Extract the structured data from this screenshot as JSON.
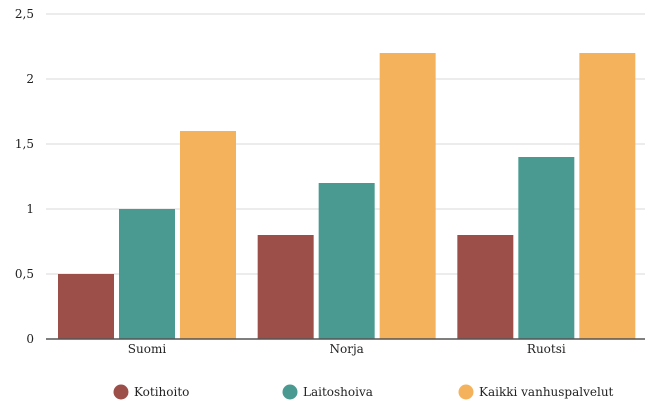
{
  "chart_data": {
    "type": "bar",
    "categories": [
      "Suomi",
      "Norja",
      "Ruotsi"
    ],
    "series": [
      {
        "name": "Kotihoito",
        "values": [
          0.5,
          0.8,
          0.8
        ],
        "color": "#9c4f48"
      },
      {
        "name": "Laitoshoiva",
        "values": [
          1.0,
          1.2,
          1.4
        ],
        "color": "#4a9a92"
      },
      {
        "name": "Kaikki vanhuspalvelut",
        "values": [
          1.6,
          2.2,
          2.2
        ],
        "color": "#f5b25c"
      }
    ],
    "ylim": [
      0,
      2.5
    ],
    "yticks": [
      0,
      0.5,
      1,
      1.5,
      2,
      2.5
    ],
    "ytick_labels": [
      "0",
      "0,5",
      "1",
      "1,5",
      "2",
      "2,5"
    ],
    "grid": true,
    "legend_position": "bottom",
    "title": "",
    "xlabel": "",
    "ylabel": ""
  }
}
